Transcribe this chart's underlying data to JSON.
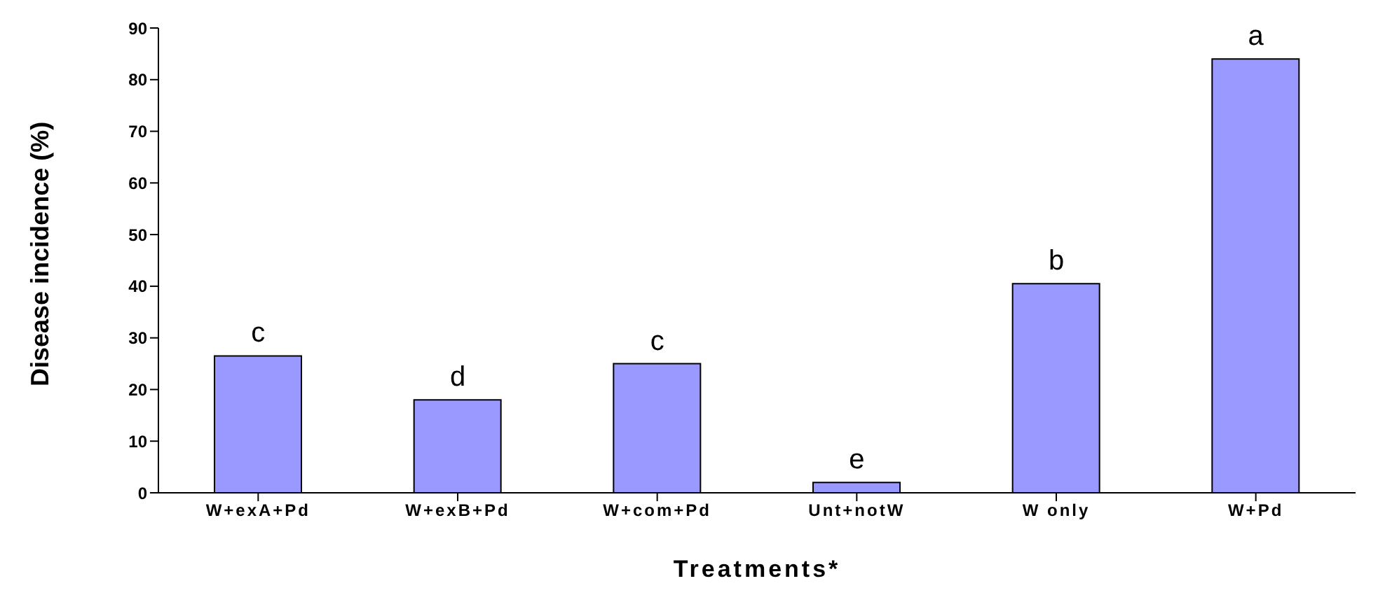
{
  "chart_data": {
    "type": "bar",
    "xlabel": "Treatments*",
    "ylabel": "Disease incidence (%)",
    "categories": [
      "W+exA+Pd",
      "W+exB+Pd",
      "W+com+Pd",
      "Unt+notW",
      "W  only",
      "W+Pd"
    ],
    "values": [
      26.5,
      18,
      25,
      2,
      40.5,
      84
    ],
    "color": "#9999ff",
    "ylim": [
      0,
      90
    ],
    "yticks": [
      0,
      10,
      20,
      30,
      40,
      50,
      60,
      70,
      80,
      90
    ],
    "grid": false,
    "legend": false,
    "annotations": [
      {
        "text": "c",
        "x": "W+exA+Pd",
        "y": 26.5
      },
      {
        "text": "d",
        "x": "W+exB+Pd",
        "y": 18
      },
      {
        "text": "c",
        "x": "W+com+Pd",
        "y": 25
      },
      {
        "text": "e",
        "x": "Unt+notW",
        "y": 2
      },
      {
        "text": "b",
        "x": "W  only",
        "y": 40.5
      },
      {
        "text": "a",
        "x": "W+Pd",
        "y": 84
      }
    ]
  }
}
